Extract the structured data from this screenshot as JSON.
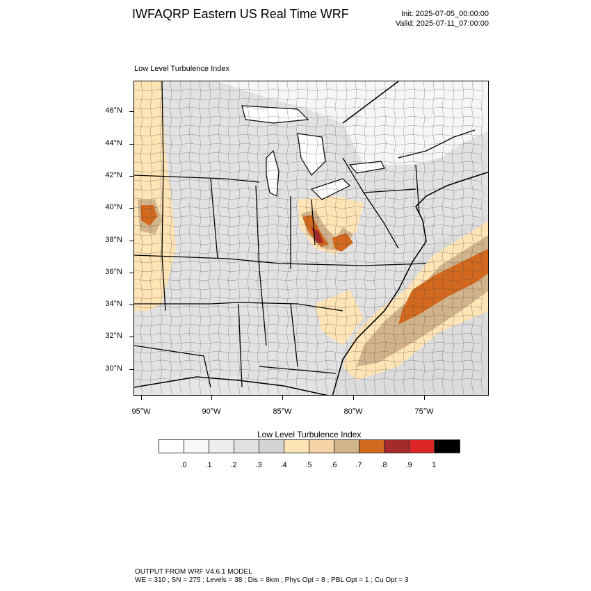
{
  "header": {
    "title": "IWFAQRP Eastern US Real Time WRF",
    "init": "Init: 2025-07-05_00:00:00",
    "valid": "Valid: 2025-07-11_07:00:00"
  },
  "plot": {
    "field_label": "Low Level Turbulence Index",
    "lat_labels": [
      "46°N",
      "44°N",
      "42°N",
      "40°N",
      "38°N",
      "36°N",
      "34°N",
      "32°N",
      "30°N"
    ],
    "lon_labels": [
      "95°W",
      "90°W",
      "85°W",
      "80°W",
      "75°W"
    ]
  },
  "colorbar": {
    "title": "Low Level Turbulence Index",
    "colors": [
      "#ffffff",
      "#f8f8f8",
      "#eeeeee",
      "#e0e0e0",
      "#d4d4d4",
      "#ffe4b5",
      "#f5d3a6",
      "#d2b48c",
      "#d2691e",
      "#a52a2a",
      "#dc2626",
      "#000000"
    ],
    "labels": [
      ".0",
      ".1",
      ".2",
      ".3",
      ".4",
      ".5",
      ".6",
      ".7",
      ".8",
      ".9",
      "1"
    ]
  },
  "footer": {
    "line1": "OUTPUT FROM WRF V4.6.1 MODEL",
    "line2": "WE = 310 ; SN = 275 ; Levels = 38 ; Dis = 8km ; Phys Opt = 8 ; PBL Opt = 1 ; Cu Opt = 3"
  }
}
